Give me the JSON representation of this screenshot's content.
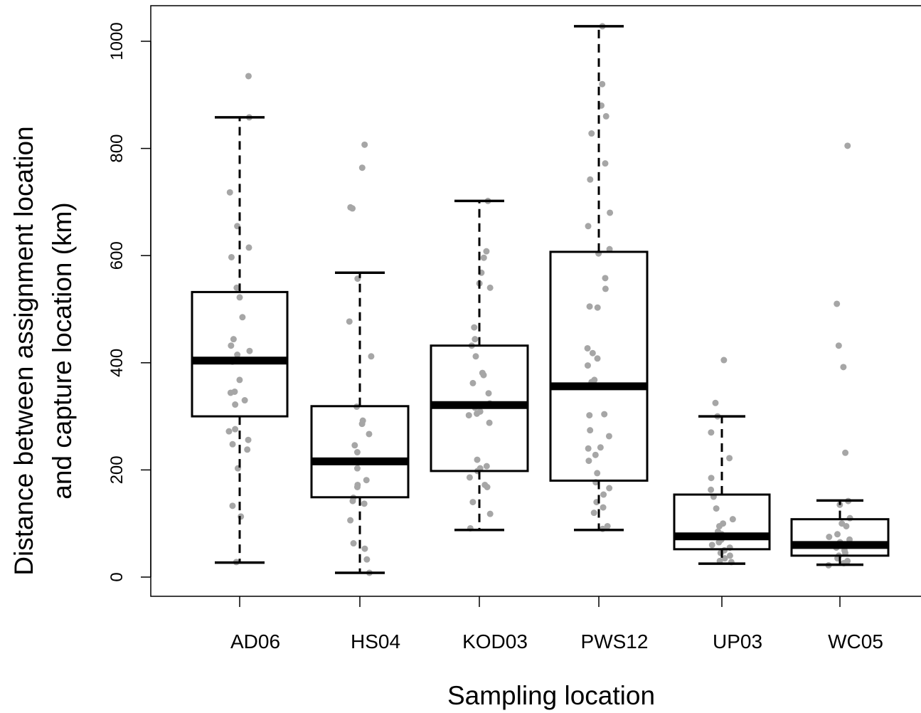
{
  "chart_data": {
    "type": "boxplot",
    "xlabel": "Sampling location",
    "ylabel_lines": [
      "Distance between assignment location",
      "and capture location (km)"
    ],
    "ylim": [
      -35,
      1070
    ],
    "yticks": [
      0,
      200,
      400,
      600,
      800,
      1000
    ],
    "grid": false,
    "legend": "none",
    "colors": {
      "box": "#000000",
      "points": "#a6a6a6"
    },
    "categories": [
      "AD06",
      "HS04",
      "KOD03",
      "PWS12",
      "UP03",
      "WC05"
    ],
    "boxes": [
      {
        "name": "AD06",
        "whisker_low": 27,
        "q1": 300,
        "median": 404,
        "q3": 532,
        "whisker_high": 858,
        "points": [
          935,
          858,
          718,
          655,
          615,
          597,
          540,
          522,
          485,
          444,
          432,
          422,
          415,
          402,
          368,
          346,
          344,
          330,
          322,
          276,
          272,
          256,
          248,
          238,
          203,
          133,
          113,
          28
        ]
      },
      {
        "name": "HS04",
        "whisker_low": 8,
        "q1": 149,
        "median": 216,
        "q3": 319,
        "whisker_high": 568,
        "points": [
          807,
          764,
          690,
          688,
          557,
          477,
          412,
          318,
          292,
          286,
          267,
          246,
          233,
          214,
          203,
          181,
          172,
          168,
          148,
          142,
          137,
          106,
          63,
          53,
          33,
          8
        ]
      },
      {
        "name": "KOD03",
        "whisker_low": 88,
        "q1": 198,
        "median": 321,
        "q3": 432,
        "whisker_high": 702,
        "points": [
          702,
          608,
          596,
          568,
          548,
          540,
          466,
          444,
          432,
          412,
          381,
          377,
          362,
          343,
          324,
          316,
          309,
          305,
          302,
          288,
          219,
          207,
          203,
          198,
          186,
          172,
          168,
          140,
          118,
          91
        ]
      },
      {
        "name": "PWS12",
        "whisker_low": 88,
        "q1": 180,
        "median": 356,
        "q3": 607,
        "whisker_high": 1028,
        "points": [
          1028,
          920,
          880,
          860,
          828,
          772,
          742,
          680,
          655,
          612,
          604,
          558,
          538,
          505,
          503,
          427,
          418,
          408,
          395,
          368,
          364,
          358,
          304,
          302,
          274,
          263,
          242,
          240,
          228,
          217,
          194,
          177,
          166,
          154,
          140,
          130,
          120,
          95,
          90
        ]
      },
      {
        "name": "UP03",
        "whisker_low": 25,
        "q1": 52,
        "median": 76,
        "q3": 154,
        "whisker_high": 300,
        "points": [
          405,
          325,
          300,
          270,
          222,
          185,
          163,
          150,
          128,
          108,
          100,
          95,
          85,
          80,
          75,
          70,
          65,
          60,
          55,
          50,
          45,
          40,
          35,
          30,
          28
        ]
      },
      {
        "name": "WC05",
        "whisker_low": 23,
        "q1": 40,
        "median": 60,
        "q3": 108,
        "whisker_high": 143,
        "points": [
          805,
          510,
          432,
          392,
          232,
          142,
          135,
          110,
          100,
          95,
          80,
          75,
          70,
          65,
          60,
          55,
          50,
          45,
          40,
          35,
          30,
          26,
          22
        ]
      }
    ]
  }
}
